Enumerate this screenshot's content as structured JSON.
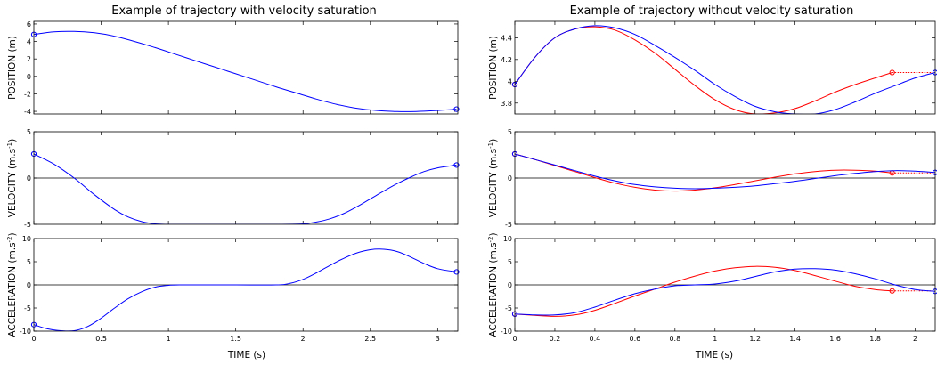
{
  "chart_data": [
    {
      "type": "line",
      "title": "Example of trajectory with velocity saturation",
      "xlabel": "TIME (s)",
      "xlim": [
        0,
        3.15
      ],
      "xticks": [
        "0",
        "0.5",
        "1",
        "1.5",
        "2",
        "2.5",
        "3"
      ],
      "xtick_values": [
        0,
        0.5,
        1,
        1.5,
        2,
        2.5,
        3
      ],
      "subplots": [
        {
          "ylabel": "POSITION (m)",
          "ylim": [
            -4.3,
            6.3
          ],
          "yticks": [
            -4,
            -2,
            0,
            2,
            4,
            6
          ],
          "zero_line": false,
          "series": [
            {
              "color": "#0000ff",
              "x": [
                0,
                0.15,
                0.3,
                0.45,
                0.6,
                0.75,
                0.9,
                1.05,
                1.2,
                1.35,
                1.5,
                1.65,
                1.8,
                1.95,
                2.1,
                2.25,
                2.4,
                2.55,
                2.7,
                2.8,
                2.9,
                3.0,
                3.1,
                3.14
              ],
              "y": [
                4.8,
                5.1,
                5.15,
                5.0,
                4.6,
                4.0,
                3.3,
                2.55,
                1.8,
                1.05,
                0.3,
                -0.45,
                -1.2,
                -1.9,
                -2.6,
                -3.2,
                -3.65,
                -3.9,
                -4.02,
                -4.03,
                -3.98,
                -3.9,
                -3.8,
                -3.75
              ],
              "endpoints": [
                [
                  0,
                  4.8
                ],
                [
                  3.14,
                  -3.75
                ]
              ]
            }
          ]
        },
        {
          "ylabel": "VELOCITY (m.s-1)",
          "ylim": [
            -5,
            5
          ],
          "yticks": [
            -5,
            0,
            5
          ],
          "zero_line": true,
          "series": [
            {
              "color": "#0000ff",
              "x": [
                0,
                0.15,
                0.3,
                0.45,
                0.6,
                0.7,
                0.8,
                0.9,
                1.0,
                1.2,
                1.5,
                1.8,
                2.0,
                2.1,
                2.2,
                2.3,
                2.4,
                2.5,
                2.6,
                2.7,
                2.8,
                2.9,
                3.0,
                3.14
              ],
              "y": [
                2.6,
                1.5,
                0.0,
                -1.8,
                -3.4,
                -4.2,
                -4.7,
                -4.95,
                -5.0,
                -5.0,
                -5.0,
                -5.0,
                -4.95,
                -4.75,
                -4.4,
                -3.85,
                -3.1,
                -2.25,
                -1.4,
                -0.6,
                0.1,
                0.7,
                1.1,
                1.4
              ],
              "endpoints": [
                [
                  0,
                  2.6
                ],
                [
                  3.14,
                  1.4
                ]
              ]
            }
          ]
        },
        {
          "ylabel": "ACCELERATION (m.s-2)",
          "ylim": [
            -10,
            10
          ],
          "yticks": [
            -10,
            -5,
            0,
            5,
            10
          ],
          "zero_line": true,
          "series": [
            {
              "color": "#0000ff",
              "x": [
                0,
                0.1,
                0.2,
                0.3,
                0.4,
                0.5,
                0.6,
                0.7,
                0.8,
                0.9,
                1.0,
                1.1,
                1.2,
                1.5,
                1.8,
                1.9,
                2.0,
                2.1,
                2.2,
                2.3,
                2.4,
                2.5,
                2.6,
                2.7,
                2.8,
                2.9,
                3.0,
                3.14
              ],
              "y": [
                -8.6,
                -9.5,
                -9.9,
                -9.9,
                -9.0,
                -7.2,
                -5.0,
                -3.0,
                -1.5,
                -0.5,
                -0.1,
                0.0,
                0.0,
                0.0,
                0.0,
                0.3,
                1.2,
                2.6,
                4.2,
                5.7,
                6.9,
                7.6,
                7.7,
                7.2,
                6.0,
                4.6,
                3.5,
                2.8
              ],
              "endpoints": [
                [
                  0,
                  -8.6
                ],
                [
                  3.14,
                  2.8
                ]
              ]
            }
          ]
        }
      ]
    },
    {
      "type": "line",
      "title": "Example of trajectory without velocity saturation",
      "xlabel": "TIME (s)",
      "xlim": [
        0,
        2.1
      ],
      "xticks": [
        "0",
        "0.2",
        "0.4",
        "0.6",
        "0.8",
        "1",
        "1.2",
        "1.4",
        "1.6",
        "1.8",
        "2"
      ],
      "xtick_values": [
        0,
        0.2,
        0.4,
        0.6,
        0.8,
        1.0,
        1.2,
        1.4,
        1.6,
        1.8,
        2.0
      ],
      "subplots": [
        {
          "ylabel": "POSITION (m)",
          "ylim": [
            3.7,
            4.55
          ],
          "yticks": [
            3.8,
            4,
            4.2,
            4.4
          ],
          "ytick_labels": [
            "3.8",
            "4",
            "4.2",
            "4.4"
          ],
          "zero_line": false,
          "series": [
            {
              "color": "#ff0000",
              "x": [
                0,
                0.1,
                0.2,
                0.3,
                0.4,
                0.5,
                0.6,
                0.7,
                0.8,
                0.9,
                1.0,
                1.1,
                1.2,
                1.3,
                1.4,
                1.5,
                1.6,
                1.7,
                1.8,
                1.885
              ],
              "y": [
                3.97,
                4.22,
                4.4,
                4.48,
                4.5,
                4.47,
                4.38,
                4.26,
                4.11,
                3.96,
                3.83,
                3.74,
                3.7,
                3.71,
                3.75,
                3.82,
                3.9,
                3.97,
                4.03,
                4.08
              ],
              "endpoints": [
                [
                  0,
                  3.97
                ],
                [
                  1.885,
                  4.08
                ]
              ]
            },
            {
              "color": "#0000ff",
              "x": [
                0,
                0.1,
                0.2,
                0.3,
                0.4,
                0.5,
                0.6,
                0.7,
                0.8,
                0.9,
                1.0,
                1.1,
                1.2,
                1.3,
                1.4,
                1.5,
                1.6,
                1.7,
                1.8,
                1.9,
                2.0,
                2.1
              ],
              "y": [
                3.97,
                4.22,
                4.4,
                4.48,
                4.51,
                4.49,
                4.43,
                4.33,
                4.22,
                4.1,
                3.97,
                3.86,
                3.77,
                3.72,
                3.7,
                3.7,
                3.74,
                3.81,
                3.89,
                3.96,
                4.03,
                4.08
              ],
              "endpoints": [
                [
                  0,
                  3.97
                ],
                [
                  2.1,
                  4.08
                ]
              ]
            }
          ]
        },
        {
          "ylabel": "VELOCITY (m.s-1)",
          "ylim": [
            -5,
            5
          ],
          "yticks": [
            -5,
            0,
            5
          ],
          "zero_line": true,
          "series": [
            {
              "color": "#ff0000",
              "x": [
                0,
                0.1,
                0.2,
                0.3,
                0.4,
                0.5,
                0.6,
                0.7,
                0.8,
                0.9,
                1.0,
                1.1,
                1.2,
                1.3,
                1.4,
                1.5,
                1.6,
                1.7,
                1.8,
                1.885
              ],
              "y": [
                2.6,
                2.0,
                1.35,
                0.7,
                0.05,
                -0.55,
                -1.0,
                -1.3,
                -1.4,
                -1.3,
                -1.05,
                -0.7,
                -0.3,
                0.1,
                0.45,
                0.7,
                0.85,
                0.85,
                0.75,
                0.55
              ],
              "endpoints": [
                [
                  0,
                  2.6
                ],
                [
                  1.885,
                  0.55
                ]
              ]
            },
            {
              "color": "#0000ff",
              "x": [
                0,
                0.1,
                0.2,
                0.3,
                0.4,
                0.5,
                0.6,
                0.7,
                0.8,
                0.9,
                1.0,
                1.1,
                1.2,
                1.3,
                1.4,
                1.5,
                1.6,
                1.7,
                1.8,
                1.9,
                2.0,
                2.1
              ],
              "y": [
                2.6,
                2.0,
                1.4,
                0.8,
                0.2,
                -0.3,
                -0.7,
                -0.95,
                -1.1,
                -1.15,
                -1.1,
                -1.0,
                -0.85,
                -0.6,
                -0.35,
                -0.05,
                0.25,
                0.5,
                0.7,
                0.8,
                0.75,
                0.6
              ],
              "endpoints": [
                [
                  0,
                  2.6
                ],
                [
                  2.1,
                  0.6
                ]
              ]
            }
          ]
        },
        {
          "ylabel": "ACCELERATION (m.s-2)",
          "ylim": [
            -10,
            10
          ],
          "yticks": [
            -10,
            -5,
            0,
            5,
            10
          ],
          "zero_line": true,
          "series": [
            {
              "color": "#ff0000",
              "x": [
                0,
                0.1,
                0.2,
                0.3,
                0.4,
                0.5,
                0.6,
                0.7,
                0.8,
                0.9,
                1.0,
                1.1,
                1.2,
                1.3,
                1.4,
                1.5,
                1.6,
                1.7,
                1.8,
                1.885
              ],
              "y": [
                -6.3,
                -6.6,
                -6.8,
                -6.5,
                -5.5,
                -4.0,
                -2.4,
                -0.9,
                0.6,
                1.9,
                3.0,
                3.7,
                4.0,
                3.8,
                3.1,
                2.0,
                0.8,
                -0.3,
                -1.0,
                -1.3
              ],
              "endpoints": [
                [
                  0,
                  -6.3
                ],
                [
                  1.885,
                  -1.3
                ]
              ]
            },
            {
              "color": "#0000ff",
              "x": [
                0,
                0.1,
                0.2,
                0.3,
                0.4,
                0.5,
                0.6,
                0.7,
                0.8,
                0.9,
                1.0,
                1.1,
                1.2,
                1.3,
                1.4,
                1.5,
                1.6,
                1.7,
                1.8,
                1.9,
                2.0,
                2.1
              ],
              "y": [
                -6.3,
                -6.5,
                -6.5,
                -6.0,
                -4.8,
                -3.3,
                -1.9,
                -0.9,
                -0.2,
                0.0,
                0.2,
                0.8,
                1.8,
                2.8,
                3.4,
                3.5,
                3.2,
                2.4,
                1.3,
                0.0,
                -1.0,
                -1.4
              ],
              "endpoints": [
                [
                  0,
                  -6.3
                ],
                [
                  2.1,
                  -1.4
                ]
              ]
            }
          ]
        }
      ]
    }
  ],
  "ui": {
    "left_title": "Example of trajectory with velocity saturation",
    "right_title": "Example of trajectory without velocity saturation",
    "xlabel": "TIME (s)",
    "ylabel_position": "POSITION (m)",
    "ylabel_velocity_main": "VELOCITY (m.s",
    "ylabel_velocity_sup": "-1",
    "ylabel_acceleration_main": "ACCELERATION (m.s",
    "ylabel_acceleration_sup": "-2",
    "ylabel_close": ")"
  }
}
